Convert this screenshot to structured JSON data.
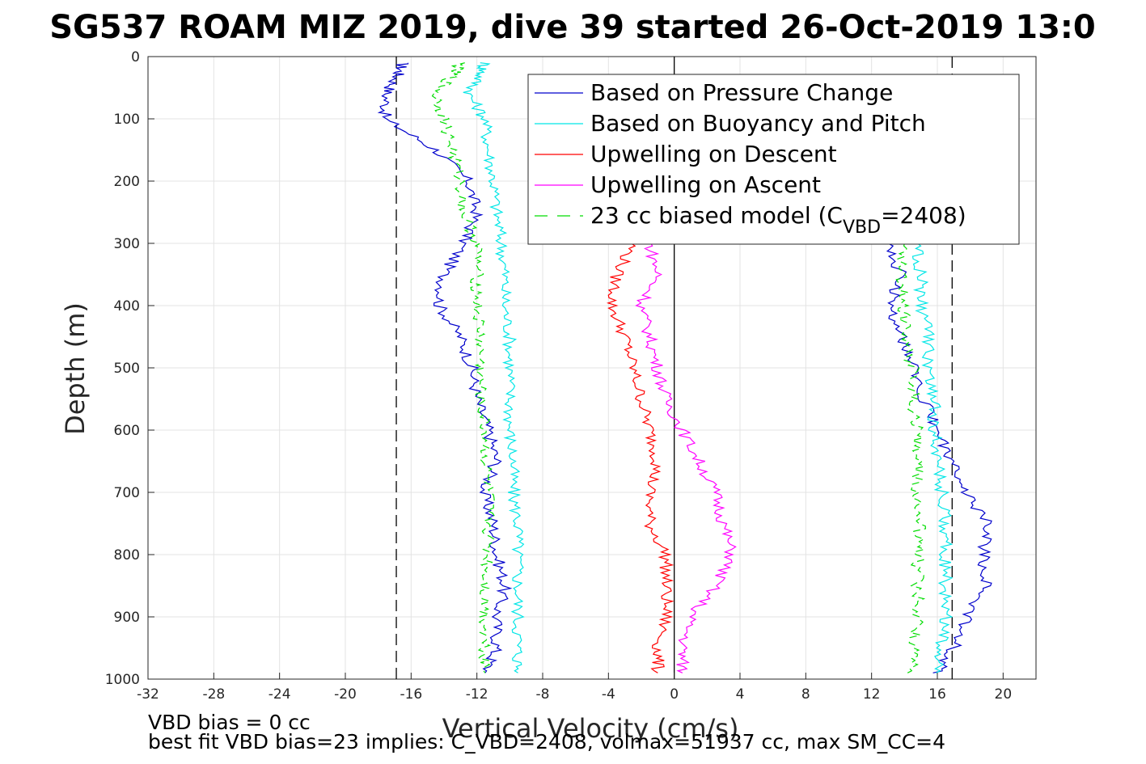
{
  "chart_data": {
    "type": "line",
    "title": "SG537 ROAM MIZ 2019, dive 39 started 26-Oct-2019 13:0",
    "xlabel": "Vertical Velocity (cm/s)",
    "ylabel": "Depth (m)",
    "xlim": [
      -32,
      22
    ],
    "ylim": [
      1000,
      0
    ],
    "y_reversed": true,
    "grid": true,
    "legend_position": "top-right",
    "xticks": [
      -32,
      -28,
      -24,
      -20,
      -16,
      -12,
      -8,
      -4,
      0,
      4,
      8,
      12,
      16,
      20
    ],
    "yticks": [
      0,
      100,
      200,
      300,
      400,
      500,
      600,
      700,
      800,
      900,
      1000
    ],
    "reference_lines": [
      {
        "x": -16.9,
        "style": "dashed",
        "color": "#000000"
      },
      {
        "x": 16.9,
        "style": "dashed",
        "color": "#000000"
      },
      {
        "x": 0,
        "style": "solid",
        "color": "#000000"
      }
    ],
    "series": [
      {
        "name": "Based on Pressure Change",
        "color": "#0000cc",
        "style": "solid",
        "descent": {
          "depth": [
            10,
            30,
            60,
            100,
            150,
            200,
            250,
            300,
            350,
            400,
            450,
            500,
            550,
            600,
            650,
            700,
            750,
            800,
            850,
            900,
            950,
            990
          ],
          "velocity": [
            -16.5,
            -16.8,
            -17.5,
            -17.6,
            -14.5,
            -12.5,
            -12.0,
            -12.8,
            -14.0,
            -14.3,
            -13.0,
            -12.3,
            -12.0,
            -11.3,
            -10.8,
            -11.6,
            -11.0,
            -10.8,
            -10.3,
            -10.8,
            -10.8,
            -11.5
          ]
        },
        "ascent": {
          "depth": [
            990,
            950,
            900,
            850,
            800,
            750,
            700,
            650,
            600,
            550,
            500,
            450,
            400,
            350,
            300
          ],
          "velocity": [
            16.0,
            17.0,
            17.8,
            19.0,
            18.8,
            19.0,
            17.8,
            16.8,
            16.0,
            15.2,
            14.5,
            13.8,
            13.2,
            13.8,
            13.0
          ]
        }
      },
      {
        "name": "Based on Buoyancy and Pitch",
        "color": "#00e6e6",
        "style": "solid",
        "descent": {
          "depth": [
            10,
            30,
            60,
            100,
            150,
            200,
            250,
            300,
            350,
            400,
            450,
            500,
            550,
            600,
            650,
            700,
            750,
            800,
            850,
            900,
            950,
            990
          ],
          "velocity": [
            -11.5,
            -11.8,
            -12.5,
            -11.5,
            -11.3,
            -11.0,
            -10.8,
            -10.5,
            -10.3,
            -10.3,
            -10.0,
            -10.0,
            -10.0,
            -10.0,
            -9.8,
            -9.8,
            -9.5,
            -9.5,
            -9.5,
            -9.5,
            -9.5,
            -9.5
          ]
        },
        "ascent": {
          "depth": [
            990,
            950,
            900,
            850,
            800,
            750,
            700,
            650,
            600,
            550,
            500,
            450,
            400,
            350,
            300
          ],
          "velocity": [
            16.0,
            16.2,
            16.5,
            16.5,
            16.5,
            16.5,
            16.3,
            16.0,
            15.8,
            15.8,
            15.5,
            15.5,
            15.0,
            15.0,
            14.8
          ]
        }
      },
      {
        "name": "Upwelling on Descent",
        "color": "#ff0000",
        "style": "solid",
        "depth": [
          300,
          350,
          400,
          450,
          500,
          550,
          600,
          650,
          700,
          750,
          800,
          850,
          900,
          950,
          990
        ],
        "velocity": [
          -2.5,
          -3.5,
          -3.8,
          -3.0,
          -2.5,
          -2.0,
          -1.5,
          -1.0,
          -1.5,
          -1.5,
          -0.5,
          -0.5,
          -0.5,
          -1.0,
          -1.0
        ]
      },
      {
        "name": "Upwelling on Ascent",
        "color": "#ff00ff",
        "style": "solid",
        "depth": [
          300,
          350,
          400,
          450,
          500,
          550,
          600,
          650,
          700,
          750,
          800,
          850,
          900,
          950,
          990
        ],
        "velocity": [
          -1.5,
          -1.0,
          -2.0,
          -1.5,
          -1.0,
          -0.5,
          0.5,
          1.5,
          2.5,
          3.0,
          3.5,
          2.5,
          1.0,
          0.5,
          0.5
        ]
      },
      {
        "name": "23 cc biased model (C",
        "name_subscript": "VBD",
        "name_suffix": "=2408)",
        "color": "#00dd00",
        "style": "dashed",
        "descent": {
          "depth": [
            10,
            30,
            60,
            100,
            150,
            200,
            250,
            300,
            350,
            400,
            450,
            500,
            550,
            600,
            650,
            700,
            750,
            800,
            850,
            900,
            950,
            990
          ],
          "velocity": [
            -13.0,
            -13.5,
            -14.5,
            -14.0,
            -13.5,
            -13.0,
            -12.8,
            -12.0,
            -12.0,
            -12.0,
            -11.8,
            -11.8,
            -11.8,
            -11.5,
            -11.5,
            -11.3,
            -11.3,
            -11.3,
            -11.5,
            -11.5,
            -11.5,
            -11.5
          ]
        },
        "ascent": {
          "depth": [
            990,
            950,
            900,
            850,
            800,
            750,
            700,
            650,
            600,
            550,
            500,
            450,
            400,
            350,
            300
          ],
          "velocity": [
            14.5,
            14.5,
            14.8,
            14.8,
            14.8,
            15.0,
            14.8,
            14.8,
            14.8,
            14.5,
            14.5,
            14.0,
            14.0,
            13.8,
            14.0
          ]
        }
      }
    ]
  },
  "footer": {
    "line1": "VBD bias = 0 cc",
    "line2": "best fit VBD bias=23 implies: C_VBD=2408, volmax=51937 cc, max SM_CC=4"
  }
}
